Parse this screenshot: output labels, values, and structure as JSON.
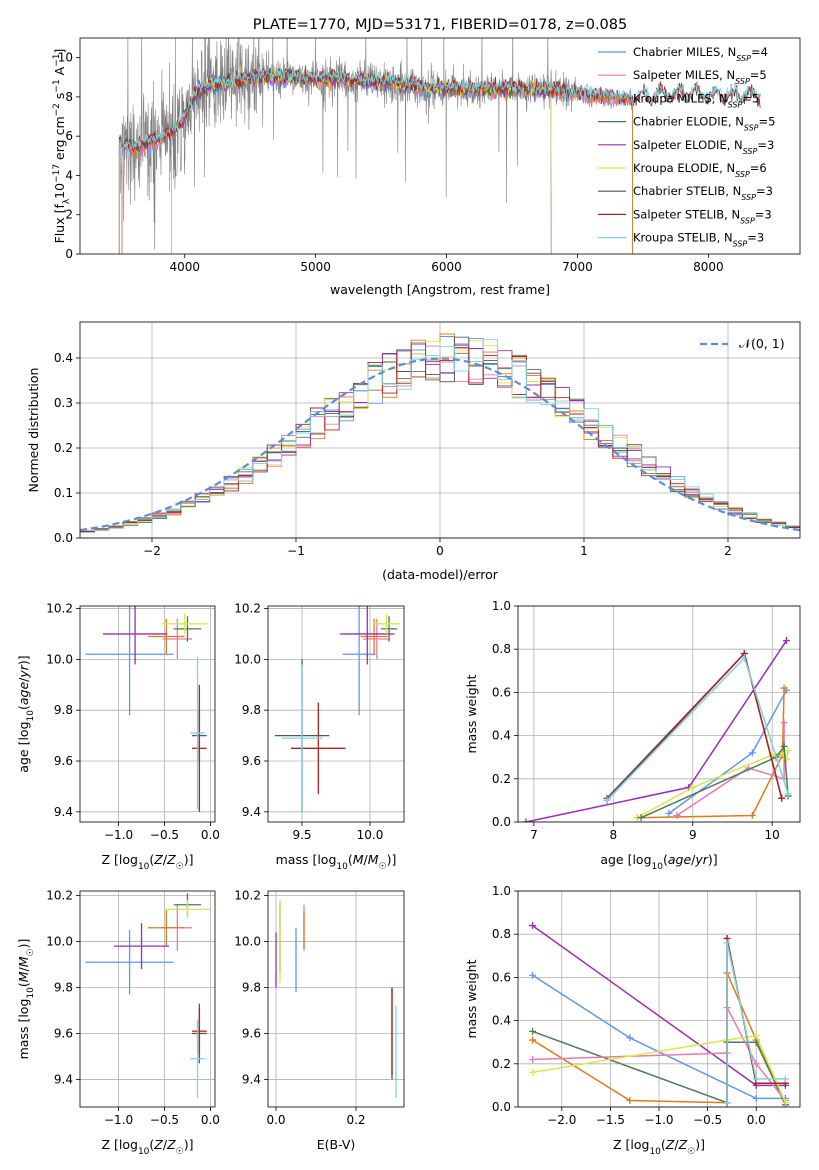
{
  "colors": {
    "chabrier_miles": "#6495ed",
    "salpeter_miles": "#e879b5",
    "kroupa_miles": "#e07b1a",
    "chabrier_elodie": "#4f7a52",
    "salpeter_elodie": "#9b2eb0",
    "kroupa_elodie": "#d6e84b",
    "chabrier_stelib": "#555555",
    "salpeter_stelib": "#b22222",
    "kroupa_stelib": "#7fd3e0",
    "data_spectrum": "#808080",
    "normal_curve": "#5b8ed6"
  },
  "chart_data": [
    {
      "id": "spectrum",
      "type": "line",
      "title": "PLATE=1770, MJD=53171, FIBERID=0178, z=0.085",
      "xlabel": "wavelength [Angstrom, rest frame]",
      "ylabel": "Flux [f_λ10^-17 erg cm^-2 s^-1 A^-1]",
      "xlim": [
        3200,
        8700
      ],
      "ylim": [
        0,
        11
      ],
      "xticks": [
        "4000",
        "5000",
        "6000",
        "7000",
        "8000"
      ],
      "yticks": [
        "0",
        "2",
        "4",
        "6",
        "8",
        "10"
      ],
      "grid": false,
      "legend_position": "top-right",
      "legend": [
        {
          "label": "Chabrier MILES, N_SSP=4",
          "color": "#6495ed"
        },
        {
          "label": "Salpeter MILES, N_SSP=5",
          "color": "#e879b5"
        },
        {
          "label": "Kroupa MILES, N_SSP=5",
          "color": "#e07b1a"
        },
        {
          "label": "Chabrier ELODIE, N_SSP=5",
          "color": "#4f7a52"
        },
        {
          "label": "Salpeter ELODIE, N_SSP=3",
          "color": "#9b2eb0"
        },
        {
          "label": "Kroupa ELODIE, N_SSP=6",
          "color": "#d6e84b"
        },
        {
          "label": "Chabrier STELIB, N_SSP=3",
          "color": "#555555"
        },
        {
          "label": "Salpeter STELIB, N_SSP=3",
          "color": "#b22222"
        },
        {
          "label": "Kroupa STELIB, N_SSP=3",
          "color": "#7fd3e0"
        }
      ],
      "continuum": {
        "x": [
          3500,
          3600,
          3700,
          3800,
          3900,
          4000,
          4100,
          4200,
          4400,
          4600,
          4800,
          5000,
          5200,
          5400,
          5600,
          5800,
          6000,
          6200,
          6400,
          6600,
          6800,
          7000,
          7200,
          7400,
          7600,
          7800,
          8000,
          8200,
          8400
        ],
        "y": [
          5.6,
          5.4,
          5.6,
          5.8,
          6.2,
          7.0,
          8.3,
          8.6,
          8.8,
          9.0,
          9.0,
          8.9,
          8.9,
          8.8,
          8.7,
          8.5,
          8.4,
          8.4,
          8.4,
          8.4,
          8.3,
          8.2,
          8.0,
          7.9,
          8.0,
          8.1,
          8.0,
          8.0,
          8.0
        ]
      }
    },
    {
      "id": "residuals",
      "type": "histogram",
      "xlabel": "(data-model)/error",
      "ylabel": "Normed distribution",
      "xlim": [
        -2.5,
        2.5
      ],
      "ylim": [
        0,
        0.48
      ],
      "xticks": [
        "−2",
        "−1",
        "0",
        "1",
        "2"
      ],
      "yticks": [
        "0.0",
        "0.1",
        "0.2",
        "0.3",
        "0.4"
      ],
      "grid": true,
      "legend_position": "top-right",
      "legend": [
        {
          "label": "𝒩(0, 1)",
          "color": "#5b8ed6"
        }
      ],
      "bin_width": 0.1
    },
    {
      "id": "age_vs_Z",
      "type": "errorbar",
      "xlabel": "Z [log10(Z/Z☉)]",
      "ylabel": "age  [log10(age/yr)]",
      "xlim": [
        -1.42,
        0.05
      ],
      "ylim": [
        9.36,
        10.21
      ],
      "xticks": [
        "−1.0",
        "−0.5",
        "0.0"
      ],
      "yticks": [
        "9.4",
        "9.6",
        "9.8",
        "10.0",
        "10.2"
      ],
      "grid": true,
      "points": [
        {
          "model": "chabrier_miles",
          "x": -0.88,
          "y": 10.02,
          "xerr": 0.48,
          "yerr": 0.24
        },
        {
          "model": "salpeter_miles",
          "x": -0.36,
          "y": 10.08,
          "xerr": 0.16,
          "yerr": 0.08
        },
        {
          "model": "kroupa_miles",
          "x": -0.48,
          "y": 10.09,
          "xerr": 0.2,
          "yerr": 0.07
        },
        {
          "model": "chabrier_elodie",
          "x": -0.25,
          "y": 10.12,
          "xerr": 0.15,
          "yerr": 0.05
        },
        {
          "model": "salpeter_elodie",
          "x": -0.82,
          "y": 10.1,
          "xerr": 0.35,
          "yerr": 0.12
        },
        {
          "model": "kroupa_elodie",
          "x": -0.28,
          "y": 10.14,
          "xerr": 0.25,
          "yerr": 0.04
        },
        {
          "model": "chabrier_stelib",
          "x": -0.12,
          "y": 9.7,
          "xerr": 0.08,
          "yerr": 0.1
        },
        {
          "model": "salpeter_stelib",
          "x": -0.12,
          "y": 9.65,
          "xerr": 0.08,
          "yerr": 0.25
        },
        {
          "model": "kroupa_stelib",
          "x": -0.14,
          "y": 9.71,
          "xerr": 0.08,
          "yerr": 0.3
        }
      ]
    },
    {
      "id": "age_vs_mass",
      "type": "errorbar",
      "xlabel": "mass [log10(M/M☉)]",
      "ylabel": "",
      "xlim": [
        9.25,
        10.25
      ],
      "ylim": [
        9.36,
        10.21
      ],
      "xticks": [
        "9.5",
        "10.0"
      ],
      "yticks": [
        "9.4",
        "9.6",
        "9.8",
        "10.0",
        "10.2"
      ],
      "grid": true,
      "points": [
        {
          "model": "chabrier_miles",
          "x": 9.92,
          "y": 10.02,
          "xerr": 0.12,
          "yerr": 0.24
        },
        {
          "model": "salpeter_miles",
          "x": 10.05,
          "y": 10.08,
          "xerr": 0.1,
          "yerr": 0.08
        },
        {
          "model": "kroupa_miles",
          "x": 10.03,
          "y": 10.09,
          "xerr": 0.1,
          "yerr": 0.07
        },
        {
          "model": "chabrier_elodie",
          "x": 10.14,
          "y": 10.12,
          "xerr": 0.06,
          "yerr": 0.05
        },
        {
          "model": "salpeter_elodie",
          "x": 9.98,
          "y": 10.1,
          "xerr": 0.2,
          "yerr": 0.12
        },
        {
          "model": "kroupa_elodie",
          "x": 10.12,
          "y": 10.14,
          "xerr": 0.1,
          "yerr": 0.04
        },
        {
          "model": "chabrier_stelib",
          "x": 9.5,
          "y": 9.7,
          "xerr": 0.2,
          "yerr": 0.3
        },
        {
          "model": "salpeter_stelib",
          "x": 9.62,
          "y": 9.65,
          "xerr": 0.2,
          "yerr": 0.18
        },
        {
          "model": "kroupa_stelib",
          "x": 9.5,
          "y": 9.69,
          "xerr": 0.15,
          "yerr": 0.29
        }
      ]
    },
    {
      "id": "weight_vs_age",
      "type": "line",
      "xlabel": "age  [log10(age/yr)]",
      "ylabel": "mass weight",
      "xlim": [
        6.8,
        10.35
      ],
      "ylim": [
        0,
        1.0
      ],
      "xticks": [
        "7",
        "8",
        "9",
        "10"
      ],
      "yticks": [
        "0.0",
        "0.2",
        "0.4",
        "0.6",
        "0.8",
        "1.0"
      ],
      "grid": true,
      "series": [
        {
          "model": "salpeter_elodie",
          "x": [
            6.9,
            8.95,
            10.18
          ],
          "y": [
            0.0,
            0.16,
            0.84
          ]
        },
        {
          "model": "chabrier_miles",
          "x": [
            8.7,
            9.75,
            10.18
          ],
          "y": [
            0.04,
            0.32,
            0.61
          ]
        },
        {
          "model": "kroupa_miles",
          "x": [
            8.3,
            9.75,
            10.13,
            10.15
          ],
          "y": [
            0.02,
            0.03,
            0.31,
            0.62
          ]
        },
        {
          "model": "salpeter_miles",
          "x": [
            8.8,
            9.7,
            10.15,
            10.15
          ],
          "y": [
            0.03,
            0.25,
            0.2,
            0.46
          ]
        },
        {
          "model": "kroupa_elodie",
          "x": [
            8.3,
            9.0,
            10.0,
            10.12,
            10.18,
            10.2
          ],
          "y": [
            0.02,
            0.16,
            0.31,
            0.32,
            0.29,
            0.33
          ]
        },
        {
          "model": "chabrier_elodie",
          "x": [
            8.35,
            10.05,
            10.15,
            10.2
          ],
          "y": [
            0.02,
            0.3,
            0.35,
            0.12
          ]
        },
        {
          "model": "chabrier_stelib",
          "x": [
            7.92,
            9.65,
            10.12
          ],
          "y": [
            0.11,
            0.78,
            0.11
          ]
        },
        {
          "model": "salpeter_stelib",
          "x": [
            7.92,
            9.65,
            10.12
          ],
          "y": [
            0.1,
            0.78,
            0.11
          ]
        },
        {
          "model": "kroupa_stelib",
          "x": [
            7.92,
            9.65,
            10.2
          ],
          "y": [
            0.1,
            0.76,
            0.13
          ]
        }
      ]
    },
    {
      "id": "mass_vs_Z",
      "type": "errorbar",
      "xlabel": "Z [log10(Z/Z☉)]",
      "ylabel": "mass [log10(M/M☉)]",
      "xlim": [
        -1.42,
        0.05
      ],
      "ylim": [
        9.28,
        10.22
      ],
      "xticks": [
        "−1.0",
        "−0.5",
        "0.0"
      ],
      "yticks": [
        "9.4",
        "9.6",
        "9.8",
        "10.0",
        "10.2"
      ],
      "grid": true,
      "points": [
        {
          "model": "chabrier_miles",
          "x": -0.88,
          "y": 9.91,
          "xerr": 0.48,
          "yerr": 0.14
        },
        {
          "model": "salpeter_miles",
          "x": -0.36,
          "y": 10.06,
          "xerr": 0.16,
          "yerr": 0.1
        },
        {
          "model": "kroupa_miles",
          "x": -0.48,
          "y": 10.06,
          "xerr": 0.2,
          "yerr": 0.08
        },
        {
          "model": "chabrier_elodie",
          "x": -0.25,
          "y": 10.16,
          "xerr": 0.15,
          "yerr": 0.05
        },
        {
          "model": "salpeter_elodie",
          "x": -0.75,
          "y": 9.98,
          "xerr": 0.3,
          "yerr": 0.1
        },
        {
          "model": "kroupa_elodie",
          "x": -0.25,
          "y": 10.14,
          "xerr": 0.25,
          "yerr": 0.04
        },
        {
          "model": "chabrier_stelib",
          "x": -0.12,
          "y": 9.6,
          "xerr": 0.08,
          "yerr": 0.13
        },
        {
          "model": "salpeter_stelib",
          "x": -0.12,
          "y": 9.61,
          "xerr": 0.08,
          "yerr": 0.1
        },
        {
          "model": "kroupa_stelib",
          "x": -0.14,
          "y": 9.49,
          "xerr": 0.08,
          "yerr": 0.17
        }
      ]
    },
    {
      "id": "mass_vs_ebv",
      "type": "errorbar",
      "xlabel": "E(B-V)",
      "ylabel": "",
      "xlim": [
        -0.02,
        0.32
      ],
      "ylim": [
        9.28,
        10.22
      ],
      "xticks": [
        "0.0",
        "0.2"
      ],
      "yticks": [
        "9.4",
        "9.6",
        "9.8",
        "10.0",
        "10.2"
      ],
      "grid": true,
      "points": [
        {
          "model": "chabrier_miles",
          "x": 0.05,
          "y": 9.92,
          "xerr": 0.0,
          "yerr": 0.14
        },
        {
          "model": "salpeter_miles",
          "x": 0.07,
          "y": 10.06,
          "xerr": 0.0,
          "yerr": 0.1
        },
        {
          "model": "kroupa_miles",
          "x": 0.07,
          "y": 10.05,
          "xerr": 0.0,
          "yerr": 0.08
        },
        {
          "model": "chabrier_elodie",
          "x": 0.01,
          "y": 10.02,
          "xerr": 0.0,
          "yerr": 0.15
        },
        {
          "model": "salpeter_elodie",
          "x": 0.0,
          "y": 9.92,
          "xerr": 0.0,
          "yerr": 0.12
        },
        {
          "model": "kroupa_elodie",
          "x": 0.01,
          "y": 10.0,
          "xerr": 0.0,
          "yerr": 0.18
        },
        {
          "model": "chabrier_stelib",
          "x": 0.29,
          "y": 9.6,
          "xerr": 0.0,
          "yerr": 0.2
        },
        {
          "model": "salpeter_stelib",
          "x": 0.29,
          "y": 9.61,
          "xerr": 0.0,
          "yerr": 0.19
        },
        {
          "model": "kroupa_stelib",
          "x": 0.3,
          "y": 9.52,
          "xerr": 0.0,
          "yerr": 0.2
        }
      ]
    },
    {
      "id": "weight_vs_Z",
      "type": "line",
      "xlabel": "Z [log10(Z/Z☉)]",
      "ylabel": "mass weight",
      "xlim": [
        -2.45,
        0.45
      ],
      "ylim": [
        0,
        1.0
      ],
      "xticks": [
        "−2.0",
        "−1.5",
        "−1.0",
        "−0.5",
        "0.0"
      ],
      "yticks": [
        "0.0",
        "0.2",
        "0.4",
        "0.6",
        "0.8",
        "1.0"
      ],
      "grid": true,
      "series": [
        {
          "model": "salpeter_elodie",
          "x": [
            -2.3,
            0.0,
            0.3
          ],
          "y": [
            0.84,
            0.1,
            0.1
          ]
        },
        {
          "model": "chabrier_miles",
          "x": [
            -2.3,
            -1.3,
            0.0,
            0.3
          ],
          "y": [
            0.61,
            0.32,
            0.04,
            0.04
          ]
        },
        {
          "model": "kroupa_miles",
          "x": [
            -2.3,
            -1.3,
            -0.3,
            -0.3,
            0.0,
            0.3
          ],
          "y": [
            0.31,
            0.03,
            0.02,
            0.62,
            0.31,
            0.01
          ]
        },
        {
          "model": "chabrier_elodie",
          "x": [
            -2.3,
            -0.3,
            -0.3,
            0.0,
            0.3
          ],
          "y": [
            0.35,
            0.02,
            0.3,
            0.3,
            0.01
          ]
        },
        {
          "model": "salpeter_miles",
          "x": [
            -2.3,
            -0.3,
            -0.3,
            0.0,
            0.3
          ],
          "y": [
            0.22,
            0.25,
            0.46,
            0.2,
            0.03
          ]
        },
        {
          "model": "kroupa_elodie",
          "x": [
            -2.3,
            -0.3,
            0.0,
            0.3
          ],
          "y": [
            0.16,
            0.31,
            0.33,
            0.02
          ]
        },
        {
          "model": "chabrier_stelib",
          "x": [
            -0.3,
            -0.3,
            0.0,
            0.3
          ],
          "y": [
            0.02,
            0.78,
            0.11,
            0.11
          ]
        },
        {
          "model": "salpeter_stelib",
          "x": [
            -0.3,
            -0.3,
            0.0,
            0.3
          ],
          "y": [
            0.02,
            0.78,
            0.11,
            0.11
          ]
        },
        {
          "model": "kroupa_stelib",
          "x": [
            -0.3,
            -0.3,
            0.0,
            0.3
          ],
          "y": [
            0.02,
            0.76,
            0.13,
            0.13
          ]
        }
      ]
    }
  ]
}
